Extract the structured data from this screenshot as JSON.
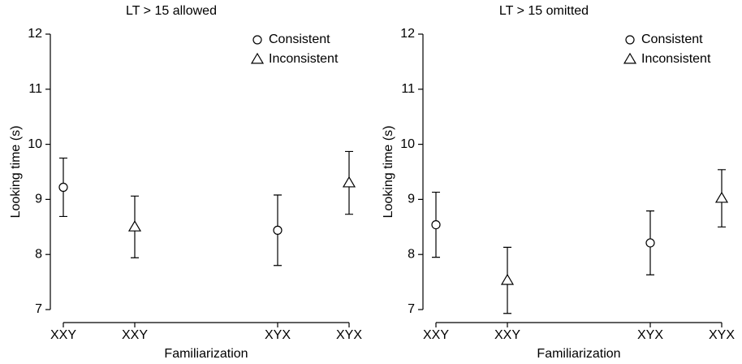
{
  "chart_data": [
    {
      "type": "scatter",
      "title": "LT > 15 allowed",
      "xlabel": "Familiarization",
      "ylabel": "Looking time (s)",
      "xlim": [
        1,
        5
      ],
      "ylim": [
        7,
        12
      ],
      "xticks": [
        {
          "value": 1,
          "label": "XXY"
        },
        {
          "value": 2,
          "label": "XXY"
        },
        {
          "value": 4,
          "label": "XYX"
        },
        {
          "value": 5,
          "label": "XYX"
        }
      ],
      "yticks": [
        7,
        8,
        9,
        10,
        11,
        12
      ],
      "legend": "upper right",
      "series": [
        {
          "name": "Consistent",
          "marker": "circle",
          "color": "#000000",
          "x": [
            1,
            4
          ],
          "values": [
            9.22,
            8.44
          ],
          "errors": [
            0.53,
            0.64
          ]
        },
        {
          "name": "Inconsistent",
          "marker": "triangle",
          "color": "#000000",
          "x": [
            2,
            5
          ],
          "values": [
            8.5,
            9.3
          ],
          "errors": [
            0.56,
            0.57
          ]
        }
      ]
    },
    {
      "type": "scatter",
      "title": "LT > 15 omitted",
      "xlabel": "Familiarization",
      "ylabel": "Looking time (s)",
      "xlim": [
        1,
        5
      ],
      "ylim": [
        7,
        12
      ],
      "xticks": [
        {
          "value": 1,
          "label": "XXY"
        },
        {
          "value": 2,
          "label": "XXY"
        },
        {
          "value": 4,
          "label": "XYX"
        },
        {
          "value": 5,
          "label": "XYX"
        }
      ],
      "yticks": [
        7,
        8,
        9,
        10,
        11,
        12
      ],
      "legend": "upper right",
      "series": [
        {
          "name": "Consistent",
          "marker": "circle",
          "color": "#000000",
          "x": [
            1,
            4
          ],
          "values": [
            8.54,
            8.21
          ],
          "errors": [
            0.59,
            0.58
          ]
        },
        {
          "name": "Inconsistent",
          "marker": "triangle",
          "color": "#000000",
          "x": [
            2,
            5
          ],
          "values": [
            7.53,
            9.02
          ],
          "errors": [
            0.6,
            0.52
          ]
        }
      ]
    }
  ]
}
